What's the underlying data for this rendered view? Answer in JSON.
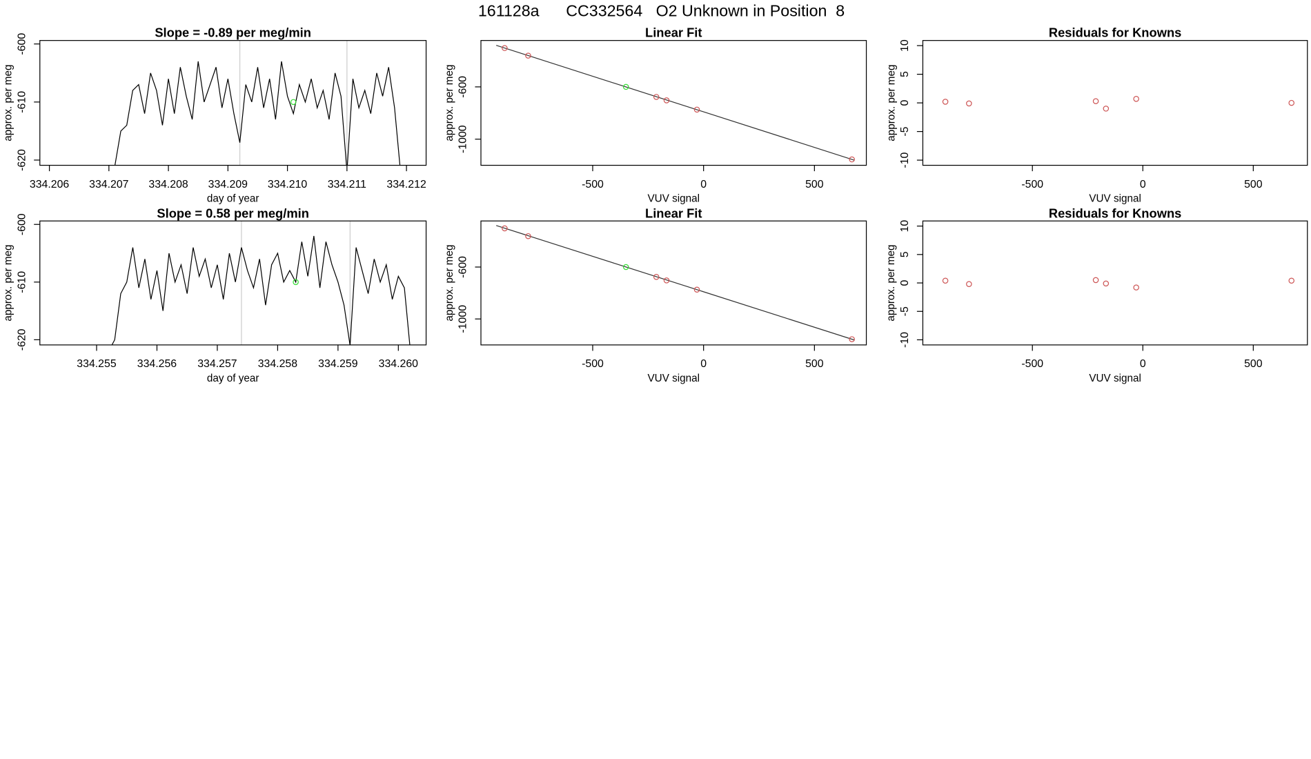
{
  "title": "161128a      CC332564   O2 Unknown in Position  8",
  "chart_data": [
    {
      "type": "line",
      "title": "Slope =  -0.89  per meg/min",
      "xlabel": "day of year",
      "ylabel": "approx. per meg",
      "xlim": [
        334.20584,
        334.21233
      ],
      "ylim": [
        -620.9,
        -599.4
      ],
      "xticks": [
        334.206,
        334.207,
        334.208,
        334.209,
        {
          "value": 334.21,
          "label": "334.210"
        },
        334.211,
        334.212
      ],
      "yticks": [
        -600,
        -610,
        -620
      ],
      "vlines": {
        "color": "#cccccc",
        "values": [
          334.2092,
          334.211
        ]
      },
      "series": [
        {
          "color": "#000000",
          "x": [
            334.207,
            334.2071,
            334.2072,
            334.2073,
            334.2074,
            334.2075,
            334.2076,
            334.2077,
            334.2078,
            334.2079,
            334.208,
            334.2081,
            334.2082,
            334.2083,
            334.2084,
            334.2085,
            334.2086,
            334.2087,
            334.2088,
            334.2089,
            334.209,
            334.2091,
            334.2092,
            334.2093,
            334.2094,
            334.2095,
            334.2096,
            334.2097,
            334.2098,
            334.2099,
            334.21,
            334.2101,
            334.2102,
            334.2103,
            334.2104,
            334.2105,
            334.2106,
            334.2107,
            334.2108,
            334.2109,
            334.211,
            334.2111,
            334.2112,
            334.2113,
            334.2114,
            334.2115,
            334.2116,
            334.2117,
            334.2118,
            334.2119
          ],
          "values": [
            -622,
            -621,
            -615,
            -614,
            -608,
            -607,
            -612,
            -605,
            -608,
            -614,
            -606,
            -612,
            -604,
            -609,
            -613,
            -603,
            -610,
            -607,
            -604,
            -611,
            -606,
            -612,
            -617,
            -607,
            -610,
            -604,
            -611,
            -606,
            -613,
            -603,
            -609,
            -612,
            -607,
            -610,
            -606,
            -611,
            -608,
            -613,
            -605,
            -609,
            -622,
            -606,
            -611,
            -608,
            -612,
            -605,
            -609,
            -604,
            -611,
            -622
          ]
        }
      ],
      "points": [
        {
          "color": "#33dd33",
          "x": [
            334.2101
          ],
          "values": [
            -610
          ]
        }
      ]
    },
    {
      "type": "scatter",
      "title": "Linear Fit",
      "xlabel": "VUV signal",
      "ylabel": "approx. per meg",
      "xlim": [
        -1004,
        734
      ],
      "ylim": [
        -1200,
        -245
      ],
      "xticks": [
        -500,
        0,
        500
      ],
      "yticks": [
        -600,
        -1000
      ],
      "fit": {
        "color": "#333333",
        "x": [
          -935,
          680
        ],
        "values": [
          -282,
          -1161
        ]
      },
      "series": [
        {
          "color": "#cd5555",
          "x": [
            -897,
            -791,
            -213,
            -167,
            -30,
            669
          ],
          "values": [
            -303,
            -361,
            -677,
            -703,
            -774,
            -1155
          ]
        },
        {
          "color": "#33dd33",
          "x": [
            -350
          ],
          "values": [
            -600
          ]
        }
      ]
    },
    {
      "type": "scatter",
      "title": "Residuals for Knowns",
      "xlabel": "VUV signal",
      "ylabel": "approx. per meg",
      "xlim": [
        -996,
        745
      ],
      "ylim": [
        -10.9,
        10.9
      ],
      "xticks": [
        -500,
        0,
        500
      ],
      "yticks": [
        10,
        5,
        0,
        -5,
        -10
      ],
      "series": [
        {
          "color": "#cd5555",
          "x": [
            -894,
            -787,
            -213,
            -167,
            -30,
            673
          ],
          "values": [
            0.2,
            -0.1,
            0.3,
            -1.0,
            0.7,
            0.0
          ]
        }
      ]
    },
    {
      "type": "line",
      "title": "Slope =  0.58  per meg/min",
      "xlabel": "day of year",
      "ylabel": "approx. per meg",
      "xlim": [
        334.25406,
        334.26046
      ],
      "ylim": [
        -620.9,
        -599.4
      ],
      "xticks": [
        334.255,
        334.256,
        334.257,
        334.258,
        334.259,
        {
          "value": 334.26,
          "label": "334.260"
        }
      ],
      "yticks": [
        -600,
        -610,
        -620
      ],
      "vlines": {
        "color": "#cccccc",
        "values": [
          334.2574,
          334.2592
        ]
      },
      "series": [
        {
          "color": "#000000",
          "x": [
            334.2552,
            334.2553,
            334.2554,
            334.2555,
            334.2556,
            334.2557,
            334.2558,
            334.2559,
            334.256,
            334.2561,
            334.2562,
            334.2563,
            334.2564,
            334.2565,
            334.2566,
            334.2567,
            334.2568,
            334.2569,
            334.257,
            334.2571,
            334.2572,
            334.2573,
            334.2574,
            334.2575,
            334.2576,
            334.2577,
            334.2578,
            334.2579,
            334.258,
            334.2581,
            334.2582,
            334.2583,
            334.2584,
            334.2585,
            334.2586,
            334.2587,
            334.2588,
            334.2589,
            334.259,
            334.2591,
            334.2592,
            334.2593,
            334.2594,
            334.2595,
            334.2596,
            334.2597,
            334.2598,
            334.2599,
            334.26,
            334.2601,
            334.2602
          ],
          "values": [
            -622,
            -620,
            -612,
            -610,
            -604,
            -611,
            -606,
            -613,
            -608,
            -615,
            -605,
            -610,
            -607,
            -612,
            -604,
            -609,
            -606,
            -611,
            -607,
            -613,
            -605,
            -610,
            -604,
            -608,
            -611,
            -606,
            -614,
            -607,
            -605,
            -610,
            -608,
            -610,
            -603,
            -609,
            -602,
            -611,
            -603,
            -607,
            -610,
            -614,
            -621,
            -604,
            -608,
            -612,
            -606,
            -610,
            -607,
            -613,
            -609,
            -611,
            -622
          ]
        }
      ],
      "points": [
        {
          "color": "#33dd33",
          "x": [
            334.2583
          ],
          "values": [
            -610
          ]
        }
      ]
    },
    {
      "type": "scatter",
      "title": "Linear Fit",
      "xlabel": "VUV signal",
      "ylabel": "approx. per meg",
      "xlim": [
        -1004,
        734
      ],
      "ylim": [
        -1200,
        -245
      ],
      "xticks": [
        -500,
        0,
        500
      ],
      "yticks": [
        -600,
        -1000
      ],
      "fit": {
        "color": "#333333",
        "x": [
          -935,
          680
        ],
        "values": [
          -280,
          -1162
        ]
      },
      "series": [
        {
          "color": "#cd5555",
          "x": [
            -897,
            -791,
            -213,
            -167,
            -30,
            669
          ],
          "values": [
            -302,
            -362,
            -676,
            -703,
            -774,
            -1156
          ]
        },
        {
          "color": "#33dd33",
          "x": [
            -350
          ],
          "values": [
            -600
          ]
        }
      ]
    },
    {
      "type": "scatter",
      "title": "Residuals for Knowns",
      "xlabel": "VUV signal",
      "ylabel": "approx. per meg",
      "xlim": [
        -996,
        745
      ],
      "ylim": [
        -10.9,
        10.9
      ],
      "xticks": [
        -500,
        0,
        500
      ],
      "yticks": [
        10,
        5,
        0,
        -5,
        -10
      ],
      "series": [
        {
          "color": "#cd5555",
          "x": [
            -894,
            -787,
            -213,
            -167,
            -30,
            673
          ],
          "values": [
            0.4,
            -0.2,
            0.5,
            -0.1,
            -0.8,
            0.4
          ]
        }
      ]
    }
  ]
}
